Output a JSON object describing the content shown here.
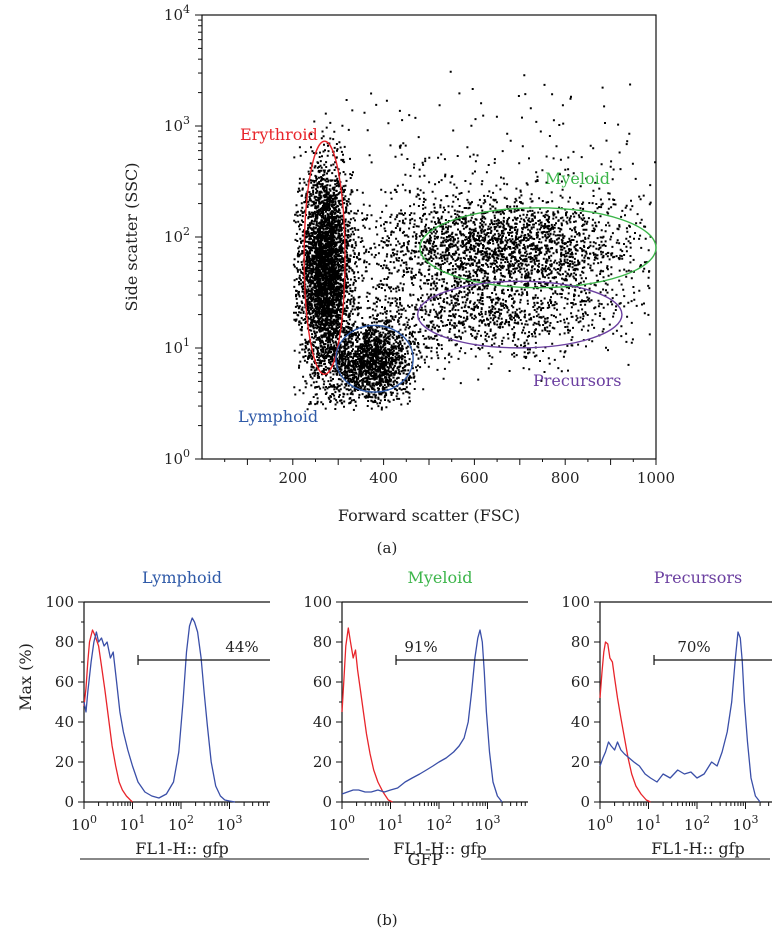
{
  "figure": {
    "panel_a_label": "(a)",
    "panel_b_label": "(b)",
    "shared_xlabel_b": "GFP"
  },
  "colors": {
    "erythroid": "#e8252b",
    "myeloid": "#3cb54a",
    "lymphoid": "#2f5aa8",
    "precursors": "#6b3fa0",
    "control": "#e8252b",
    "sample": "#3a4fa8"
  },
  "chart_data": [
    {
      "type": "scatter",
      "xlabel": "Forward scatter (FSC)",
      "ylabel": "Side scatter (SSC)",
      "xlim": [
        0,
        1000
      ],
      "ylim": [
        1,
        10000
      ],
      "yscale": "log",
      "x_ticks": [
        200,
        400,
        600,
        800,
        1000
      ],
      "y_ticks": [
        {
          "base": "10",
          "exp": "0"
        },
        {
          "base": "10",
          "exp": "1"
        },
        {
          "base": "10",
          "exp": "2"
        },
        {
          "base": "10",
          "exp": "3"
        },
        {
          "base": "10",
          "exp": "4"
        }
      ],
      "gates": [
        {
          "label": "Erythroid",
          "color": "#e8252b",
          "center": [
            270,
            65
          ],
          "x_radius": 45,
          "y_decades_radius": 1.05
        },
        {
          "label": "Myeloid",
          "color": "#3cb54a",
          "center": [
            740,
            80
          ],
          "x_radius": 260,
          "y_decades_radius": 0.36
        },
        {
          "label": "Lymphoid",
          "color": "#2f5aa8",
          "center": [
            380,
            8
          ],
          "x_radius": 85,
          "y_decades_radius": 0.3
        },
        {
          "label": "Precursors",
          "color": "#6b3fa0",
          "center": [
            700,
            20
          ],
          "x_radius": 225,
          "y_decades_radius": 0.3
        }
      ],
      "populations": [
        {
          "name": "Erythroid",
          "x_mean": 270,
          "x_sd": 28,
          "log_y_mean": 1.7,
          "log_y_sd": 0.45,
          "share": 0.42
        },
        {
          "name": "Lymphoid",
          "x_mean": 370,
          "x_sd": 45,
          "log_y_mean": 0.88,
          "log_y_sd": 0.18,
          "share": 0.18
        },
        {
          "name": "Myeloid",
          "x_mean": 660,
          "x_sd": 150,
          "log_y_mean": 1.92,
          "log_y_sd": 0.22,
          "share": 0.24
        },
        {
          "name": "Precursors",
          "x_mean": 620,
          "x_sd": 160,
          "log_y_mean": 1.3,
          "log_y_sd": 0.2,
          "share": 0.12
        },
        {
          "name": "Scatter",
          "x_mean": 650,
          "x_sd": 200,
          "log_y_mean": 2.4,
          "log_y_sd": 0.5,
          "share": 0.04
        }
      ],
      "point_count": 9000
    },
    {
      "type": "line",
      "title": "Lymphoid",
      "title_color": "#2f5aa8",
      "xlabel": "FL1-H:: gfp",
      "ylabel": "Max (%)",
      "xscale": "log",
      "xlim": [
        1,
        10000
      ],
      "ylim": [
        0,
        100
      ],
      "y_ticks": [
        0,
        20,
        40,
        60,
        80,
        100
      ],
      "x_ticks": [
        {
          "base": "10",
          "exp": "0"
        },
        {
          "base": "10",
          "exp": "1"
        },
        {
          "base": "10",
          "exp": "2"
        },
        {
          "base": "10",
          "exp": "3"
        }
      ],
      "gate": {
        "label": "44%",
        "x_start": 13,
        "x_end": 10000,
        "y": 71
      },
      "series": [
        {
          "role": "control",
          "color": "#e8252b",
          "x": [
            1,
            1.1,
            1.2,
            1.3,
            1.5,
            1.7,
            2,
            2.3,
            2.7,
            3.2,
            3.8,
            4.5,
            5.3,
            6.2,
            7.5,
            9,
            10
          ],
          "y": [
            48,
            57,
            70,
            80,
            86,
            83,
            78,
            68,
            56,
            42,
            28,
            18,
            10,
            6,
            3,
            1,
            0
          ]
        },
        {
          "role": "sample",
          "color": "#3a4fa8",
          "x": [
            1,
            1.1,
            1.2,
            1.4,
            1.6,
            1.8,
            2,
            2.3,
            2.6,
            3,
            3.5,
            4,
            4.7,
            5.5,
            6.5,
            8,
            10,
            13,
            18,
            25,
            35,
            50,
            70,
            90,
            110,
            130,
            150,
            170,
            190,
            220,
            260,
            300,
            350,
            420,
            520,
            650,
            800,
            1000,
            1300
          ],
          "y": [
            50,
            45,
            55,
            70,
            80,
            85,
            80,
            82,
            78,
            80,
            72,
            75,
            60,
            45,
            35,
            26,
            18,
            10,
            5,
            3,
            2,
            4,
            10,
            25,
            50,
            75,
            88,
            92,
            90,
            85,
            72,
            55,
            38,
            20,
            8,
            3,
            1,
            0.5,
            0
          ]
        }
      ]
    },
    {
      "type": "line",
      "title": "Myeloid",
      "title_color": "#3cb54a",
      "xlabel": "FL1-H:: gfp",
      "xscale": "log",
      "xlim": [
        1,
        10000
      ],
      "ylim": [
        0,
        100
      ],
      "y_ticks": [
        0,
        20,
        40,
        60,
        80,
        100
      ],
      "x_ticks": [
        {
          "base": "10",
          "exp": "0"
        },
        {
          "base": "10",
          "exp": "1"
        },
        {
          "base": "10",
          "exp": "2"
        },
        {
          "base": "10",
          "exp": "3"
        }
      ],
      "gate": {
        "label": "91%",
        "x_start": 13,
        "x_end": 10000,
        "y": 71
      },
      "series": [
        {
          "role": "control",
          "color": "#e8252b",
          "x": [
            1,
            1.1,
            1.2,
            1.35,
            1.5,
            1.7,
            1.9,
            2.1,
            2.4,
            2.8,
            3.2,
            3.8,
            4.5,
            5.5,
            7,
            9,
            11
          ],
          "y": [
            45,
            62,
            78,
            87,
            80,
            72,
            76,
            66,
            56,
            44,
            34,
            24,
            16,
            10,
            5,
            1,
            0
          ]
        },
        {
          "role": "sample",
          "color": "#3a4fa8",
          "x": [
            1,
            1.3,
            1.7,
            2.2,
            3,
            4,
            5.5,
            7.5,
            10,
            14,
            20,
            28,
            40,
            55,
            75,
            100,
            140,
            200,
            260,
            330,
            400,
            470,
            550,
            630,
            700,
            780,
            860,
            950,
            1100,
            1300,
            1600,
            2000
          ],
          "y": [
            4,
            5,
            6,
            6,
            5,
            5,
            6,
            5,
            6,
            7,
            10,
            12,
            14,
            16,
            18,
            20,
            22,
            25,
            28,
            32,
            40,
            55,
            72,
            82,
            86,
            80,
            65,
            45,
            25,
            10,
            3,
            0
          ]
        }
      ]
    },
    {
      "type": "line",
      "title": "Precursors",
      "title_color": "#6b3fa0",
      "xlabel": "FL1-H:: gfp",
      "xscale": "log",
      "xlim": [
        1,
        10000
      ],
      "ylim": [
        0,
        100
      ],
      "y_ticks": [
        0,
        20,
        40,
        60,
        80,
        100
      ],
      "x_ticks": [
        {
          "base": "10",
          "exp": "0"
        },
        {
          "base": "10",
          "exp": "1"
        },
        {
          "base": "10",
          "exp": "2"
        },
        {
          "base": "10",
          "exp": "3"
        }
      ],
      "gate": {
        "label": "70%",
        "x_start": 13,
        "x_end": 10000,
        "y": 71
      },
      "series": [
        {
          "role": "control",
          "color": "#e8252b",
          "x": [
            1,
            1.1,
            1.2,
            1.3,
            1.45,
            1.6,
            1.8,
            2,
            2.3,
            2.7,
            3.2,
            3.8,
            4.5,
            5.5,
            7,
            9,
            11
          ],
          "y": [
            52,
            65,
            75,
            80,
            79,
            72,
            70,
            62,
            52,
            42,
            32,
            22,
            14,
            8,
            4,
            1,
            0
          ]
        },
        {
          "role": "sample",
          "color": "#3a4fa8",
          "x": [
            1,
            1.15,
            1.3,
            1.5,
            1.7,
            2,
            2.3,
            2.7,
            3.2,
            4,
            5,
            6.5,
            8.5,
            11,
            15,
            20,
            28,
            40,
            55,
            75,
            100,
            140,
            200,
            260,
            330,
            420,
            520,
            620,
            700,
            780,
            860,
            950,
            1100,
            1300,
            1600,
            2000
          ],
          "y": [
            18,
            22,
            25,
            30,
            28,
            26,
            30,
            26,
            24,
            22,
            20,
            18,
            14,
            12,
            10,
            14,
            12,
            16,
            14,
            15,
            12,
            14,
            20,
            18,
            25,
            35,
            50,
            72,
            85,
            82,
            70,
            50,
            30,
            12,
            3,
            0
          ]
        }
      ]
    }
  ]
}
